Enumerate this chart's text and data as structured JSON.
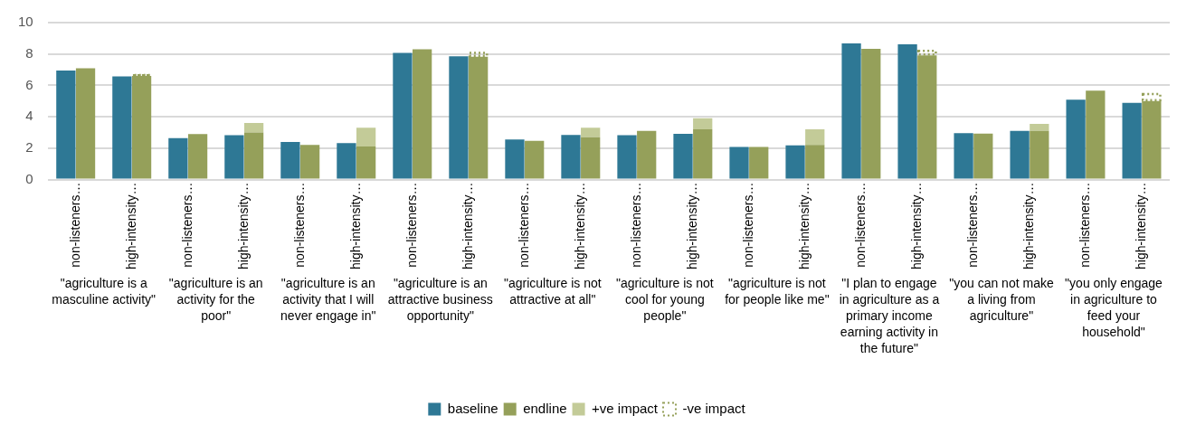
{
  "chart_data": {
    "type": "bar",
    "categories": [
      "non-listeners…",
      "high-intensity…",
      "non-listeners…",
      "high-intensity…",
      "non-listeners…",
      "high-intensity…",
      "non-listeners…",
      "high-intensity…",
      "non-listeners…",
      "high-intensity…",
      "non-listeners…",
      "high-intensity…",
      "non-listeners…",
      "high-intensity…",
      "non-listeners…",
      "high-intensity…",
      "non-listeners…",
      "high-intensity…",
      "non-listeners…",
      "high-intensity…"
    ],
    "series": [
      {
        "name": "baseline",
        "color": "#2e7895",
        "values": [
          6.95,
          6.57,
          2.64,
          2.82,
          2.39,
          2.32,
          8.07,
          7.85,
          2.55,
          2.84,
          2.82,
          2.91,
          2.07,
          2.18,
          8.68,
          8.62,
          2.95,
          3.1,
          5.08,
          4.89
        ]
      },
      {
        "name": "endline",
        "color": "#95a05a",
        "values": [
          7.09,
          6.6,
          2.89,
          3.0,
          2.2,
          2.1,
          8.3,
          7.82,
          2.47,
          2.7,
          3.1,
          3.2,
          2.07,
          2.2,
          8.33,
          7.91,
          2.93,
          3.1,
          5.67,
          5.0
        ]
      },
      {
        "name": "+ve impact",
        "color": "#c3cb98",
        "base": [
          null,
          null,
          null,
          3.0,
          null,
          2.1,
          null,
          null,
          null,
          2.7,
          null,
          3.2,
          null,
          2.2,
          null,
          null,
          null,
          3.1,
          null,
          null
        ],
        "values": [
          null,
          null,
          null,
          0.6,
          null,
          1.2,
          null,
          null,
          null,
          0.6,
          null,
          0.7,
          null,
          1.0,
          null,
          null,
          null,
          0.45,
          null,
          null
        ]
      },
      {
        "name": "-ve impact",
        "color": "#95a05a",
        "line_style": "dotted",
        "base": [
          null,
          6.6,
          null,
          null,
          null,
          null,
          null,
          7.82,
          null,
          null,
          null,
          null,
          null,
          null,
          null,
          7.91,
          null,
          null,
          null,
          5.0
        ],
        "values": [
          null,
          0.1,
          null,
          null,
          null,
          null,
          null,
          0.3,
          null,
          null,
          null,
          null,
          null,
          null,
          null,
          0.35,
          null,
          null,
          null,
          0.5
        ]
      }
    ],
    "annotations": [
      "\"agriculture is a masculine activity\"",
      "\"agriculture is an activity for the poor\"",
      "\"agriculture is an activity that I will never engage in\"",
      "\"agriculture is an attractive business opportunity\"",
      "\"agriculture is not attractive at all\"",
      "\"agriculture is not cool for young people\"",
      "\"agriculture is not for people like me\"",
      "\"I plan to engage in agriculture as a primary income earning activity in the future\"",
      "\"you can not make a living from agriculture\"",
      "\"you only engage in agriculture to feed your household\""
    ],
    "ylim": [
      0,
      10
    ],
    "yticks": [
      0,
      2,
      4,
      6,
      8,
      10
    ],
    "grid": "y",
    "legend": "bottom"
  }
}
